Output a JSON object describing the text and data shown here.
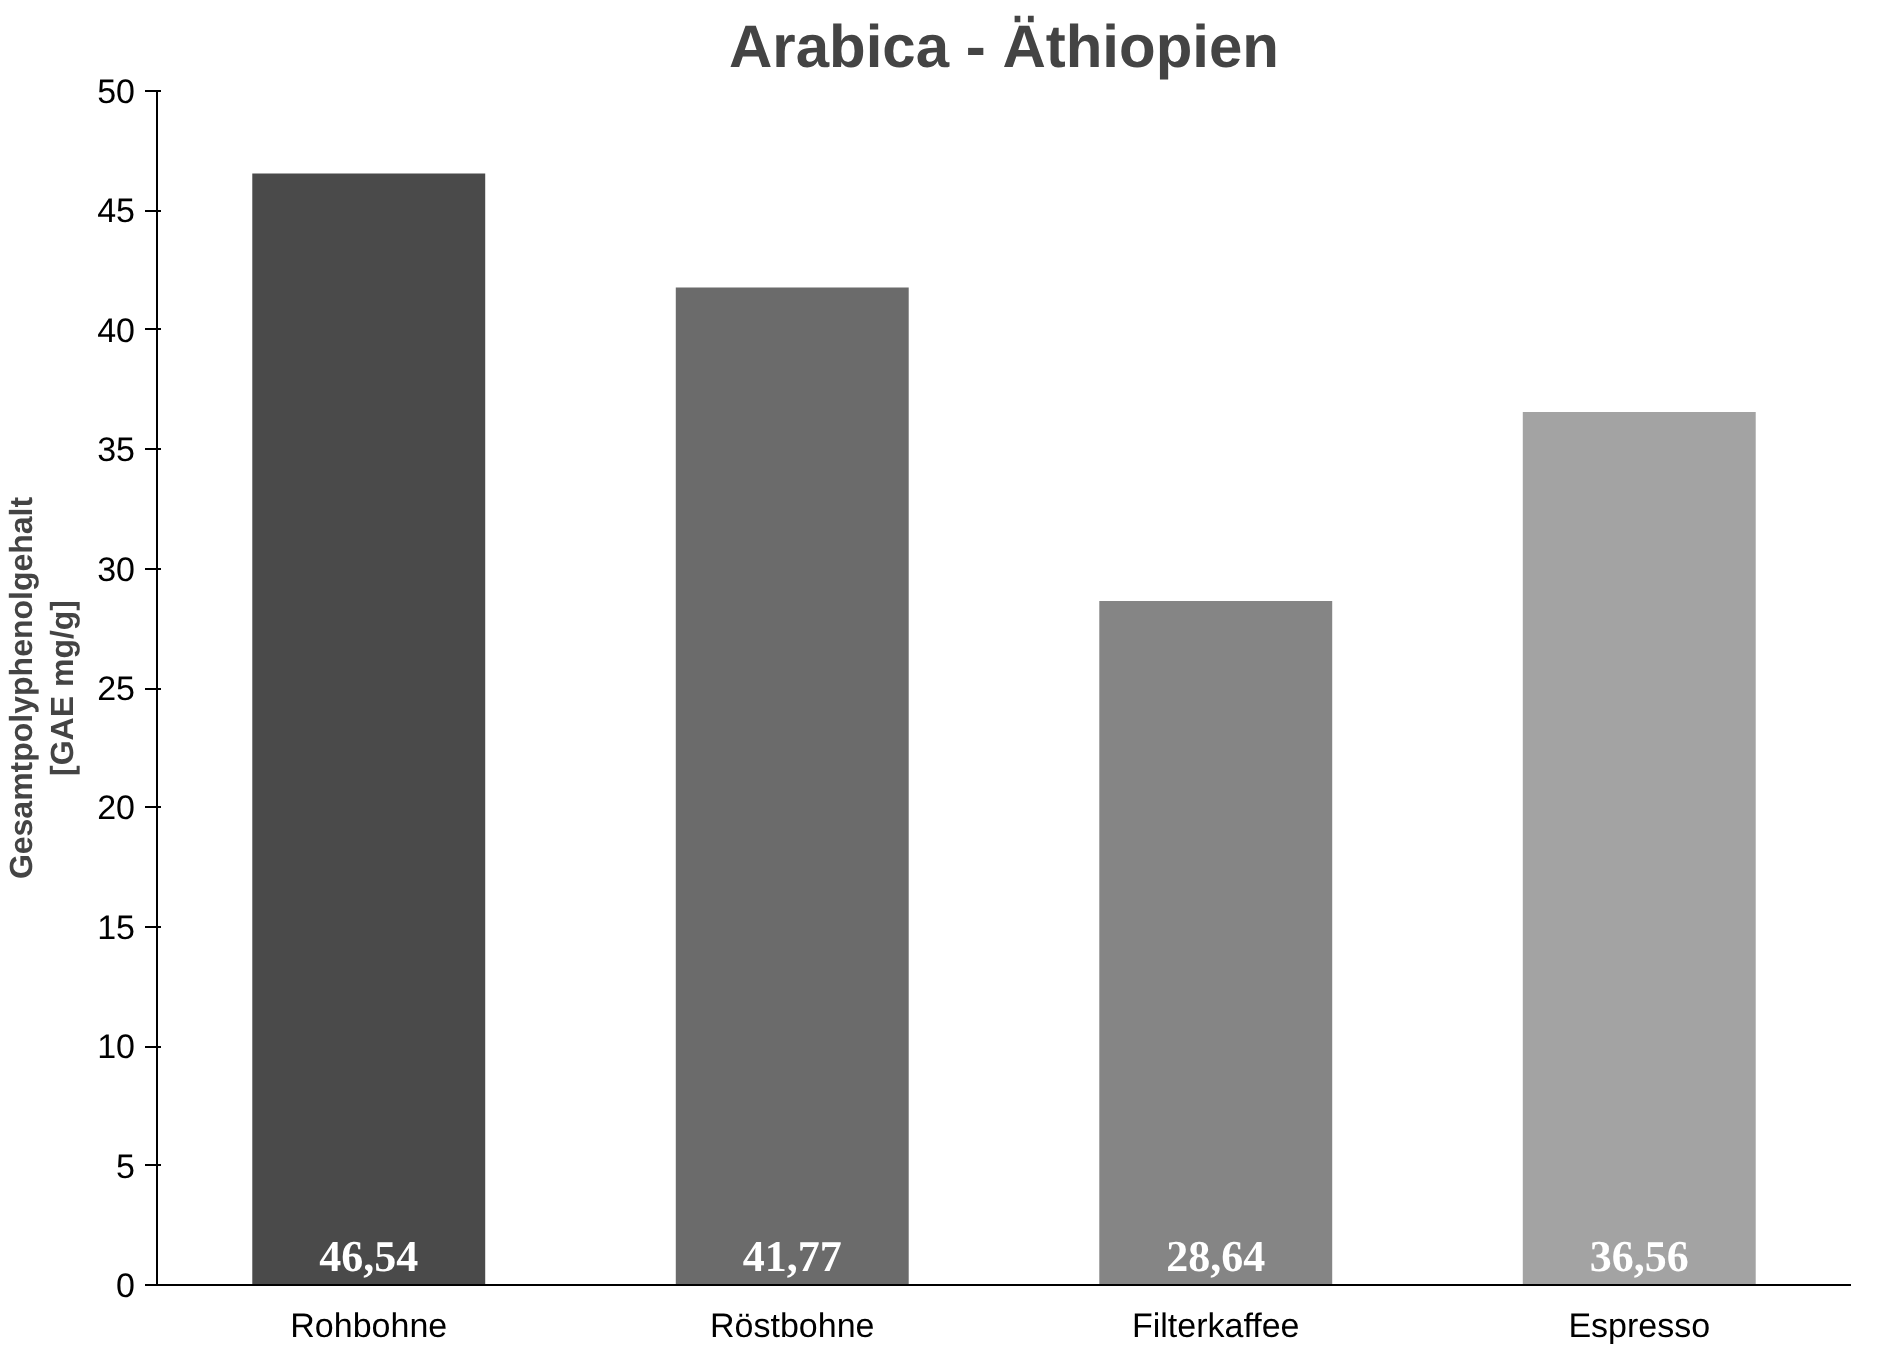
{
  "chart_data": {
    "type": "bar",
    "title": "Arabica - Äthiopien",
    "ylabel": "Gesamtpolyphenolgehalt\n[GAE mg/g]",
    "categories": [
      "Rohbohne",
      "Röstbohne",
      "Filterkaffee",
      "Espresso"
    ],
    "values": [
      46.54,
      41.77,
      28.64,
      36.56
    ],
    "value_labels": [
      "46,54",
      "41,77",
      "28,64",
      "36,56"
    ],
    "colors": [
      "#4a4a4a",
      "#6b6b6b",
      "#858585",
      "#a3a3a3"
    ],
    "ylim": [
      0,
      50
    ],
    "yticks": [
      0,
      5,
      10,
      15,
      20,
      25,
      30,
      35,
      40,
      45,
      50
    ],
    "grid": false
  }
}
